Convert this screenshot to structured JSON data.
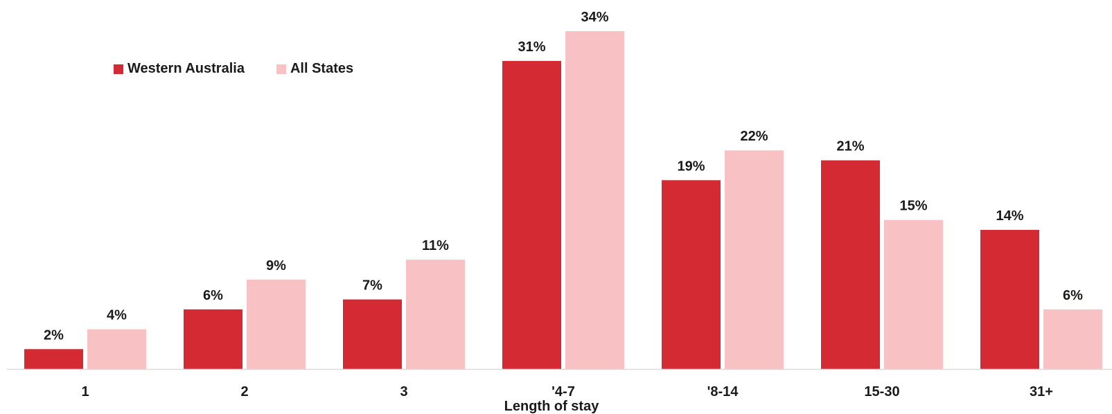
{
  "chart_data": {
    "type": "bar",
    "title": "",
    "xlabel": "Length of stay",
    "ylabel": "",
    "categories": [
      "1",
      "2",
      "3",
      "'4-7",
      "'8-14",
      "15-30",
      "31+"
    ],
    "series": [
      {
        "name": "Western Australia",
        "color": "#d42a33",
        "values": [
          2,
          6,
          7,
          31,
          19,
          21,
          14
        ],
        "labels": [
          "2%",
          "6%",
          "7%",
          "31%",
          "19%",
          "21%",
          "14%"
        ]
      },
      {
        "name": "All States",
        "color": "#f8c1c4",
        "values": [
          4,
          9,
          11,
          34,
          22,
          15,
          6
        ],
        "labels": [
          "4%",
          "9%",
          "11%",
          "34%",
          "22%",
          "15%",
          "6%"
        ]
      }
    ],
    "ylim": [
      0,
      34
    ],
    "grid": false,
    "legend": "top-left",
    "axis_color": "#d9d9d9"
  }
}
